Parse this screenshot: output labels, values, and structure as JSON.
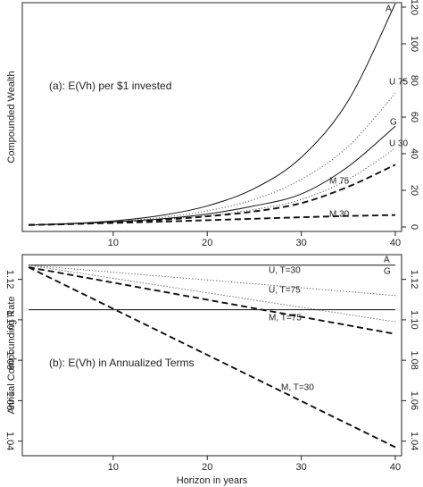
{
  "chart_data": [
    {
      "type": "line",
      "title": "(a): E(Vh) per $1 invested",
      "xlabel": "",
      "ylabel": "Compounded Wealth",
      "xlim": [
        1,
        40
      ],
      "ylim": [
        0,
        120
      ],
      "x_ticks": [
        10,
        20,
        30,
        40
      ],
      "y_ticks": [
        0,
        20,
        40,
        60,
        80,
        100,
        120
      ],
      "y_axis_side": "right",
      "grid": false,
      "series": [
        {
          "name": "A",
          "style": "solid",
          "x": [
            1,
            5,
            10,
            15,
            20,
            25,
            30,
            35,
            40
          ],
          "y": [
            1.1,
            1.8,
            3.3,
            6.2,
            11.5,
            21,
            38,
            69,
            122
          ]
        },
        {
          "name": "U 75",
          "style": "dotted",
          "x": [
            1,
            5,
            10,
            15,
            20,
            25,
            30,
            35,
            40
          ],
          "y": [
            1.1,
            1.7,
            3.0,
            5.1,
            8.8,
            15,
            26,
            44,
            73
          ]
        },
        {
          "name": "G",
          "style": "solid",
          "x": [
            1,
            5,
            10,
            15,
            20,
            25,
            30,
            35,
            40
          ],
          "y": [
            1.1,
            1.6,
            2.8,
            4.4,
            7.1,
            11.5,
            18,
            33,
            55
          ]
        },
        {
          "name": "U 30",
          "style": "dotted",
          "x": [
            1,
            5,
            10,
            15,
            20,
            25,
            30,
            35,
            40
          ],
          "y": [
            1.1,
            1.6,
            2.6,
            4.0,
            6.2,
            9.5,
            15,
            26,
            43
          ]
        },
        {
          "name": "M 75",
          "style": "dashed",
          "x": [
            1,
            5,
            10,
            15,
            20,
            25,
            30,
            35,
            40
          ],
          "y": [
            1.1,
            1.6,
            2.6,
            3.9,
            5.8,
            8.5,
            13,
            22,
            34
          ]
        },
        {
          "name": "M 30",
          "style": "dashed",
          "x": [
            1,
            5,
            10,
            15,
            20,
            25,
            30,
            35,
            40
          ],
          "y": [
            1.1,
            1.5,
            2.2,
            2.9,
            3.7,
            4.5,
            5.3,
            6.0,
            6.5
          ]
        }
      ]
    },
    {
      "type": "line",
      "title": "(b): E(Vh) in Annualized Terms",
      "xlabel": "Horizon in years",
      "ylabel": "Annual Compounding Rate",
      "xlim": [
        1,
        40
      ],
      "ylim": [
        1.035,
        1.13
      ],
      "x_ticks": [
        10,
        20,
        30,
        40
      ],
      "y_ticks": [
        1.04,
        1.06,
        1.08,
        1.1,
        1.12
      ],
      "y_tick_labels": [
        "1.04",
        "1.06",
        "1.08",
        "1.10",
        "1.12"
      ],
      "y_axis_side": "both",
      "grid": false,
      "series": [
        {
          "name": "A",
          "style": "solid",
          "x": [
            1,
            40
          ],
          "y": [
            1.127,
            1.127
          ]
        },
        {
          "name": "U, T=75",
          "style": "dotted",
          "x": [
            1,
            40
          ],
          "y": [
            1.127,
            1.112
          ]
        },
        {
          "name": "U, T=30",
          "style": "dotted",
          "x": [
            1,
            40
          ],
          "y": [
            1.127,
            1.099
          ]
        },
        {
          "name": "G",
          "style": "solid",
          "x": [
            1,
            40
          ],
          "y": [
            1.105,
            1.105
          ]
        },
        {
          "name": "M, T=75",
          "style": "dashed",
          "x": [
            1,
            40
          ],
          "y": [
            1.126,
            1.093
          ]
        },
        {
          "name": "M, T=30",
          "style": "dashed",
          "x": [
            1,
            40
          ],
          "y": [
            1.126,
            1.037
          ]
        }
      ]
    }
  ]
}
